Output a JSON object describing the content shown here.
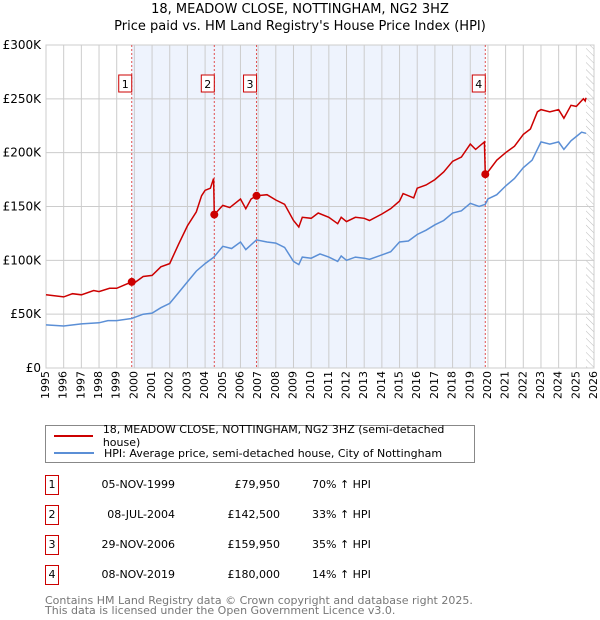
{
  "title": "18, MEADOW CLOSE, NOTTINGHAM, NG2 3HZ",
  "subtitle": "Price paid vs. HM Land Registry's House Price Index (HPI)",
  "chart_data": {
    "type": "line",
    "title": "18, MEADOW CLOSE, NOTTINGHAM, NG2 3HZ",
    "ylim": [
      0,
      300000
    ],
    "xlim": [
      1995,
      2026
    ],
    "yticks": [
      {
        "v": 0,
        "label": "£0"
      },
      {
        "v": 50000,
        "label": "£50K"
      },
      {
        "v": 100000,
        "label": "£100K"
      },
      {
        "v": 150000,
        "label": "£150K"
      },
      {
        "v": 200000,
        "label": "£200K"
      },
      {
        "v": 250000,
        "label": "£250K"
      },
      {
        "v": 300000,
        "label": "£300K"
      }
    ],
    "xticks": [
      "1995",
      "1996",
      "1997",
      "1998",
      "1999",
      "2000",
      "2001",
      "2002",
      "2003",
      "2004",
      "2005",
      "2006",
      "2007",
      "2008",
      "2009",
      "2010",
      "2011",
      "2012",
      "2013",
      "2014",
      "2015",
      "2016",
      "2017",
      "2018",
      "2019",
      "2020",
      "2021",
      "2022",
      "2023",
      "2024",
      "2025",
      "2026"
    ],
    "colors": {
      "property": "#cc0000",
      "hpi": "#5b8fd6",
      "shade": "#eef3fd"
    },
    "series": [
      {
        "name": "18, MEADOW CLOSE, NOTTINGHAM, NG2 3HZ (semi-detached house)",
        "points": [
          [
            1995,
            68000
          ],
          [
            1996,
            66000
          ],
          [
            1996.5,
            69000
          ],
          [
            1997,
            68000
          ],
          [
            1997.7,
            72000
          ],
          [
            1998,
            71000
          ],
          [
            1998.6,
            74000
          ],
          [
            1999,
            74000
          ],
          [
            1999.85,
            79950
          ],
          [
            2000,
            79000
          ],
          [
            2000.5,
            85000
          ],
          [
            2001,
            86000
          ],
          [
            2001.5,
            94000
          ],
          [
            2002,
            97000
          ],
          [
            2002.5,
            115000
          ],
          [
            2003,
            132000
          ],
          [
            2003.5,
            145000
          ],
          [
            2003.8,
            160000
          ],
          [
            2004,
            165000
          ],
          [
            2004.3,
            167000
          ],
          [
            2004.48,
            176000
          ],
          [
            2004.52,
            142500
          ],
          [
            2005,
            151000
          ],
          [
            2005.4,
            149000
          ],
          [
            2006,
            157000
          ],
          [
            2006.3,
            148000
          ],
          [
            2006.6,
            157000
          ],
          [
            2006.91,
            159950
          ],
          [
            2007.5,
            161000
          ],
          [
            2008,
            156000
          ],
          [
            2008.5,
            152000
          ],
          [
            2009,
            137000
          ],
          [
            2009.3,
            131000
          ],
          [
            2009.5,
            140000
          ],
          [
            2010,
            139000
          ],
          [
            2010.4,
            144000
          ],
          [
            2011,
            140000
          ],
          [
            2011.5,
            134000
          ],
          [
            2011.7,
            140000
          ],
          [
            2012,
            136000
          ],
          [
            2012.5,
            140000
          ],
          [
            2013,
            139000
          ],
          [
            2013.3,
            137000
          ],
          [
            2014,
            143000
          ],
          [
            2014.5,
            148000
          ],
          [
            2015,
            155000
          ],
          [
            2015.2,
            162000
          ],
          [
            2015.8,
            158000
          ],
          [
            2016,
            167000
          ],
          [
            2016.5,
            170000
          ],
          [
            2017,
            175000
          ],
          [
            2017.5,
            182000
          ],
          [
            2018,
            192000
          ],
          [
            2018.5,
            196000
          ],
          [
            2019,
            208000
          ],
          [
            2019.3,
            203000
          ],
          [
            2019.8,
            210000
          ],
          [
            2019.85,
            180000
          ],
          [
            2020,
            182000
          ],
          [
            2020.5,
            193000
          ],
          [
            2021,
            200000
          ],
          [
            2021.5,
            206000
          ],
          [
            2022,
            217000
          ],
          [
            2022.4,
            222000
          ],
          [
            2022.8,
            238000
          ],
          [
            2023,
            240000
          ],
          [
            2023.5,
            238000
          ],
          [
            2024,
            240000
          ],
          [
            2024.3,
            232000
          ],
          [
            2024.7,
            244000
          ],
          [
            2025,
            243000
          ],
          [
            2025.4,
            250000
          ],
          [
            2025.5,
            248000
          ],
          [
            2025.55,
            251000
          ]
        ]
      },
      {
        "name": "HPI: Average price, semi-detached house, City of Nottingham",
        "points": [
          [
            1995,
            40000
          ],
          [
            1996,
            39000
          ],
          [
            1997,
            41000
          ],
          [
            1998,
            42000
          ],
          [
            1998.5,
            44000
          ],
          [
            1999,
            44000
          ],
          [
            1999.85,
            46000
          ],
          [
            2000,
            47000
          ],
          [
            2000.5,
            50000
          ],
          [
            2001,
            51000
          ],
          [
            2001.5,
            56000
          ],
          [
            2002,
            60000
          ],
          [
            2002.5,
            70000
          ],
          [
            2003,
            80000
          ],
          [
            2003.5,
            90000
          ],
          [
            2004,
            97000
          ],
          [
            2004.5,
            103000
          ],
          [
            2005,
            113000
          ],
          [
            2005.5,
            111000
          ],
          [
            2006,
            117000
          ],
          [
            2006.3,
            110000
          ],
          [
            2006.91,
            119000
          ],
          [
            2007.5,
            117000
          ],
          [
            2008,
            116000
          ],
          [
            2008.5,
            112000
          ],
          [
            2009,
            99000
          ],
          [
            2009.3,
            96000
          ],
          [
            2009.5,
            103000
          ],
          [
            2010,
            102000
          ],
          [
            2010.5,
            106000
          ],
          [
            2011,
            103000
          ],
          [
            2011.5,
            99000
          ],
          [
            2011.7,
            104000
          ],
          [
            2012,
            100000
          ],
          [
            2012.5,
            103000
          ],
          [
            2013,
            102000
          ],
          [
            2013.3,
            101000
          ],
          [
            2014,
            105000
          ],
          [
            2014.5,
            108000
          ],
          [
            2015,
            117000
          ],
          [
            2015.5,
            118000
          ],
          [
            2016,
            124000
          ],
          [
            2016.5,
            128000
          ],
          [
            2017,
            133000
          ],
          [
            2017.5,
            137000
          ],
          [
            2018,
            144000
          ],
          [
            2018.5,
            146000
          ],
          [
            2019,
            153000
          ],
          [
            2019.5,
            150000
          ],
          [
            2019.85,
            152000
          ],
          [
            2020,
            157000
          ],
          [
            2020.5,
            161000
          ],
          [
            2021,
            169000
          ],
          [
            2021.5,
            176000
          ],
          [
            2022,
            186000
          ],
          [
            2022.5,
            193000
          ],
          [
            2023,
            210000
          ],
          [
            2023.5,
            208000
          ],
          [
            2024,
            210000
          ],
          [
            2024.3,
            203000
          ],
          [
            2024.7,
            211000
          ],
          [
            2025,
            215000
          ],
          [
            2025.3,
            219000
          ],
          [
            2025.55,
            218000
          ]
        ]
      }
    ],
    "sales": [
      {
        "n": "1",
        "x": 1999.85,
        "y": 79950
      },
      {
        "n": "2",
        "x": 2004.52,
        "y": 142500
      },
      {
        "n": "3",
        "x": 2006.91,
        "y": 159950
      },
      {
        "n": "4",
        "x": 2019.85,
        "y": 180000
      }
    ],
    "forecast_from": 2025.55
  },
  "legend": {
    "property": "18, MEADOW CLOSE, NOTTINGHAM, NG2 3HZ (semi-detached house)",
    "hpi": "HPI: Average price, semi-detached house, City of Nottingham"
  },
  "table": [
    {
      "n": "1",
      "date": "05-NOV-1999",
      "price": "£79,950",
      "hpi": "70% ↑ HPI"
    },
    {
      "n": "2",
      "date": "08-JUL-2004",
      "price": "£142,500",
      "hpi": "33% ↑ HPI"
    },
    {
      "n": "3",
      "date": "29-NOV-2006",
      "price": "£159,950",
      "hpi": "35% ↑ HPI"
    },
    {
      "n": "4",
      "date": "08-NOV-2019",
      "price": "£180,000",
      "hpi": "14% ↑ HPI"
    }
  ],
  "footer": [
    "Contains HM Land Registry data © Crown copyright and database right 2025.",
    "This data is licensed under the Open Government Licence v3.0."
  ]
}
